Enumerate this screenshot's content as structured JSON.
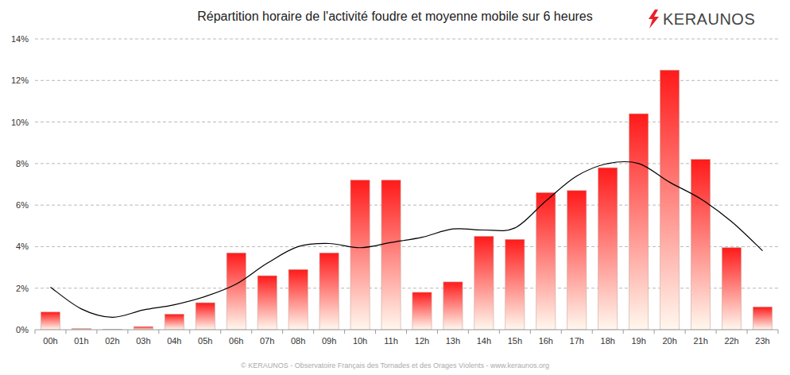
{
  "chart_data": {
    "type": "bar",
    "title": "Répartition horaire de l'activité foudre et moyenne mobile sur 6 heures",
    "logo": "KERAUNOS",
    "source": "© KERAUNOS - Observatoire Français des Tornades et des Orages Violents - www.keraunos.org",
    "categories": [
      "00h",
      "01h",
      "02h",
      "03h",
      "04h",
      "05h",
      "06h",
      "07h",
      "08h",
      "09h",
      "10h",
      "11h",
      "12h",
      "13h",
      "14h",
      "15h",
      "16h",
      "17h",
      "18h",
      "19h",
      "20h",
      "21h",
      "22h",
      "23h"
    ],
    "series": [
      {
        "type": "bar",
        "color": "#ff1a1a",
        "values": [
          0.85,
          0.05,
          0.02,
          0.15,
          0.75,
          1.3,
          3.7,
          2.6,
          2.9,
          3.7,
          7.2,
          7.2,
          1.8,
          2.3,
          4.5,
          4.35,
          6.6,
          6.7,
          7.8,
          10.4,
          12.5,
          8.2,
          3.95,
          1.1
        ]
      },
      {
        "type": "line",
        "color": "#000000",
        "line_style": "solid",
        "values": [
          2.05,
          1.0,
          0.6,
          0.95,
          1.2,
          1.6,
          2.2,
          3.2,
          4.0,
          4.15,
          3.95,
          4.2,
          4.45,
          4.85,
          4.8,
          4.9,
          6.2,
          7.4,
          8.0,
          8.0,
          7.1,
          6.3,
          5.2,
          3.8
        ]
      }
    ],
    "ylim": [
      0,
      14
    ],
    "yticks": [
      {
        "value": 0,
        "label": "0%"
      },
      {
        "value": 2,
        "label": "2%"
      },
      {
        "value": 4,
        "label": "4%"
      },
      {
        "value": 6,
        "label": "6%"
      },
      {
        "value": 8,
        "label": "8%"
      },
      {
        "value": 10,
        "label": "10%"
      },
      {
        "value": 12,
        "label": "12%"
      },
      {
        "value": 14,
        "label": "14%"
      }
    ],
    "grid": true
  }
}
